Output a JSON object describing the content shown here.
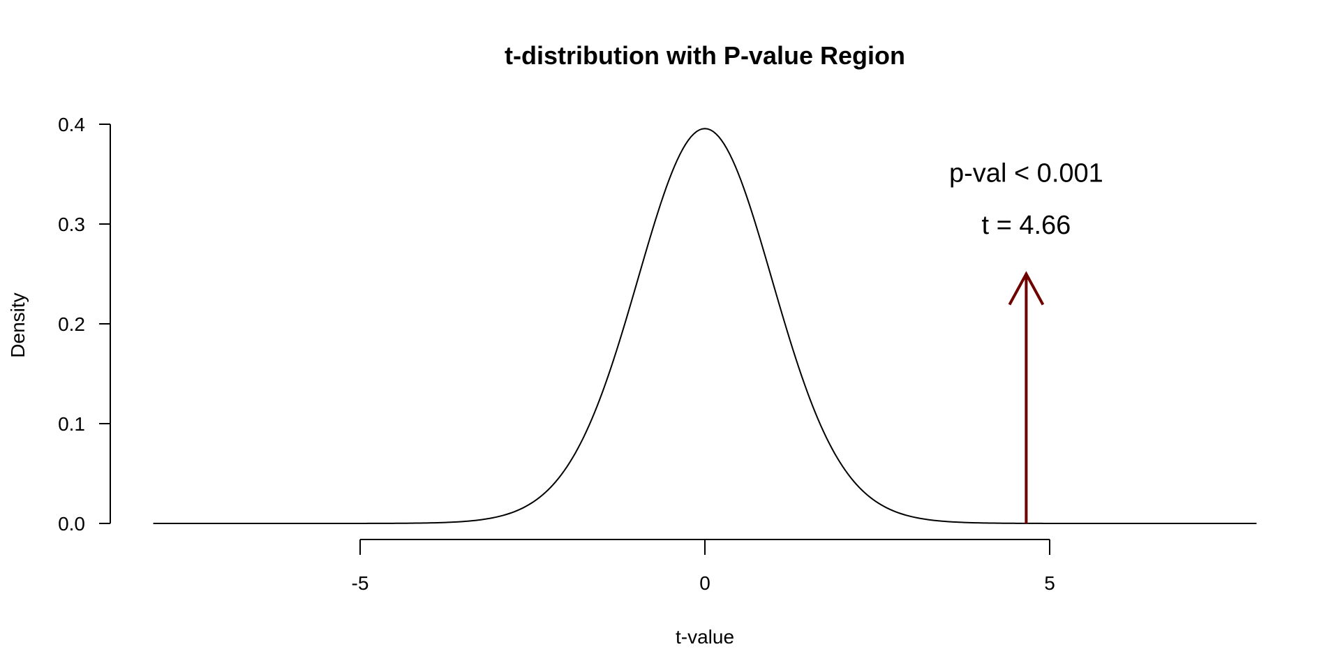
{
  "chart_data": {
    "type": "line",
    "title": "t-distribution with P-value Region",
    "xlabel": "t-value",
    "ylabel": "Density",
    "xlim": [
      -8,
      8
    ],
    "ylim": [
      0,
      0.4
    ],
    "x_ticks": [
      -5,
      0,
      5
    ],
    "x_tick_labels": [
      "-5",
      "0",
      "5"
    ],
    "y_ticks": [
      0.0,
      0.1,
      0.2,
      0.3,
      0.4
    ],
    "y_tick_labels": [
      "0.0",
      "0.1",
      "0.2",
      "0.3",
      "0.4"
    ],
    "grid": false,
    "series": [
      {
        "curve": "t-density",
        "x": [
          -8,
          -6,
          -4,
          -3,
          -2.5,
          -2,
          -1.5,
          -1,
          -0.5,
          0,
          0.5,
          1,
          1.5,
          2,
          2.5,
          3,
          4,
          6,
          8
        ],
        "y": [
          0.0,
          0.0,
          0.0002,
          0.005,
          0.018,
          0.055,
          0.13,
          0.242,
          0.352,
          0.397,
          0.352,
          0.242,
          0.13,
          0.055,
          0.018,
          0.005,
          0.0002,
          0.0,
          0.0
        ],
        "color": "#000000"
      }
    ],
    "annotations": [
      {
        "kind": "arrow",
        "x": 4.66,
        "y_from": 0.0,
        "y_to": 0.25,
        "color": "#6e0000"
      },
      {
        "kind": "text",
        "text": "p-val < 0.001",
        "x": 4.66,
        "y": 0.352
      },
      {
        "kind": "text",
        "text": "t = 4.66",
        "x": 4.66,
        "y": 0.3
      }
    ]
  }
}
